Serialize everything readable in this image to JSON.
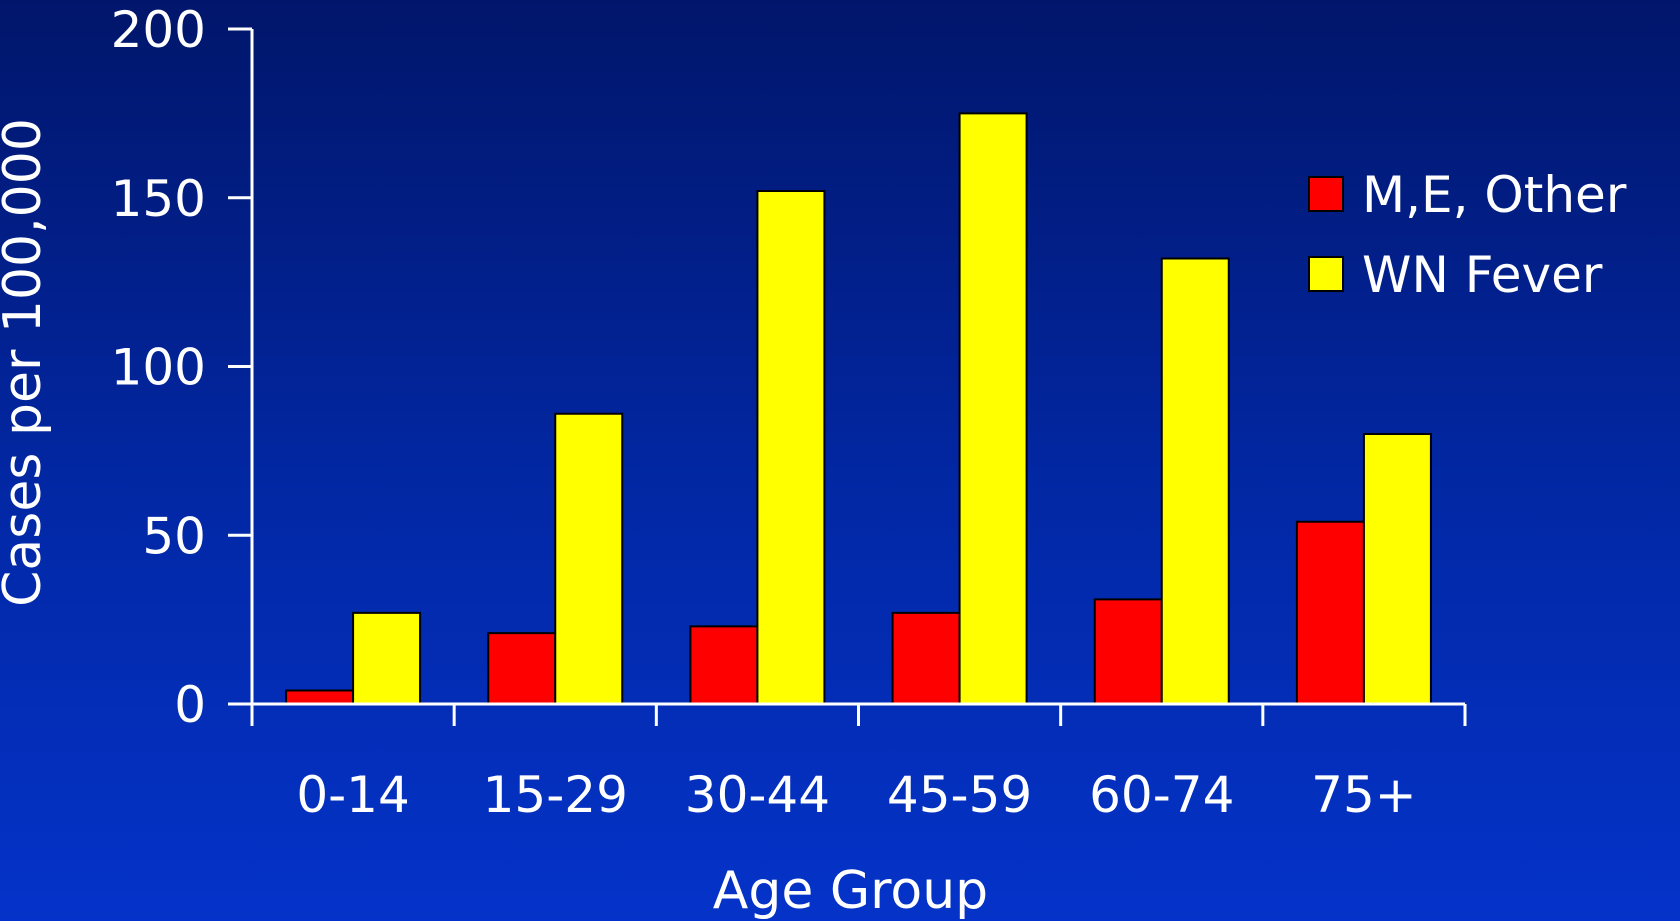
{
  "chart_data": {
    "type": "bar",
    "xlabel": "Age Group",
    "ylabel": "Cases per 100,000",
    "ylim": [
      0,
      200
    ],
    "yticks": [
      0,
      50,
      100,
      150,
      200
    ],
    "categories": [
      "0-14",
      "15-29",
      "30-44",
      "45-59",
      "60-74",
      "75+"
    ],
    "series": [
      {
        "name": "M,E, Other",
        "color": "#ff0000",
        "values": [
          4,
          21,
          23,
          27,
          31,
          54
        ]
      },
      {
        "name": "WN Fever",
        "color": "#ffff00",
        "values": [
          27,
          86,
          152,
          175,
          132,
          80
        ]
      }
    ],
    "grid": false,
    "legend": "right"
  }
}
